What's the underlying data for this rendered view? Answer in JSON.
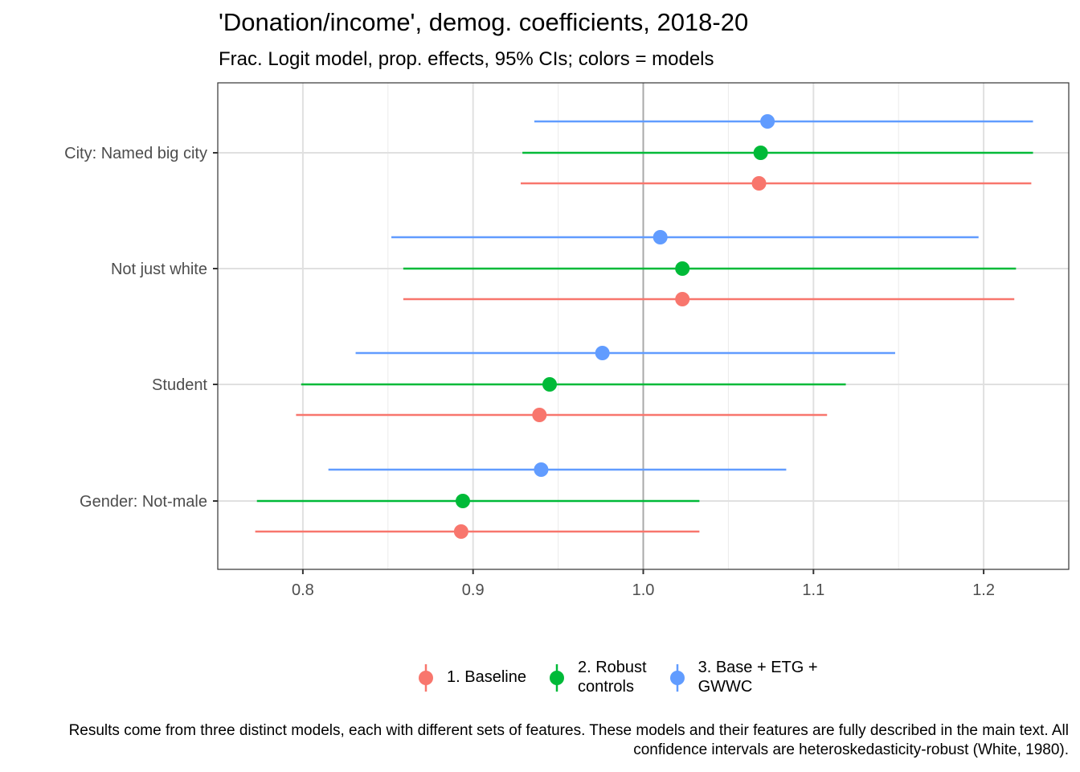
{
  "chart_data": {
    "type": "dot-and-whisker",
    "title": "'Donation/income', demog. coefficients, 2018-20",
    "subtitle": "Frac. Logit model, prop. effects, 95% CIs; colors = models",
    "xlabel": "",
    "ylabel": "",
    "xlim": [
      0.75,
      1.25
    ],
    "x_ticks": [
      "0.8",
      "0.9",
      "1.0",
      "1.1",
      "1.2"
    ],
    "reference_line": 1.0,
    "grid": true,
    "categories": [
      "City: Named big city",
      "Not just white",
      "Student",
      "Gender: Not-male"
    ],
    "series": [
      {
        "name": "1. Baseline",
        "color": "#F8766D",
        "estimate": [
          1.068,
          1.023,
          0.939,
          0.893
        ],
        "ci_low": [
          0.928,
          0.859,
          0.796,
          0.772
        ],
        "ci_high": [
          1.228,
          1.218,
          1.108,
          1.033
        ]
      },
      {
        "name": "2. Robust\ncontrols",
        "color": "#00BA38",
        "estimate": [
          1.069,
          1.023,
          0.945,
          0.894
        ],
        "ci_low": [
          0.929,
          0.859,
          0.799,
          0.773
        ],
        "ci_high": [
          1.229,
          1.219,
          1.119,
          1.033
        ]
      },
      {
        "name": "3. Base + ETG +\nGWWC",
        "color": "#619CFF",
        "estimate": [
          1.073,
          1.01,
          0.976,
          0.94
        ],
        "ci_low": [
          0.936,
          0.852,
          0.831,
          0.815
        ],
        "ci_high": [
          1.229,
          1.197,
          1.148,
          1.084
        ]
      }
    ],
    "legend_position": "bottom"
  },
  "caption": "Results come from three distinct models, each with different sets of features. These models and their features are fully described in the main text. All confidence intervals are heteroskedasticity-robust (White, 1980)."
}
